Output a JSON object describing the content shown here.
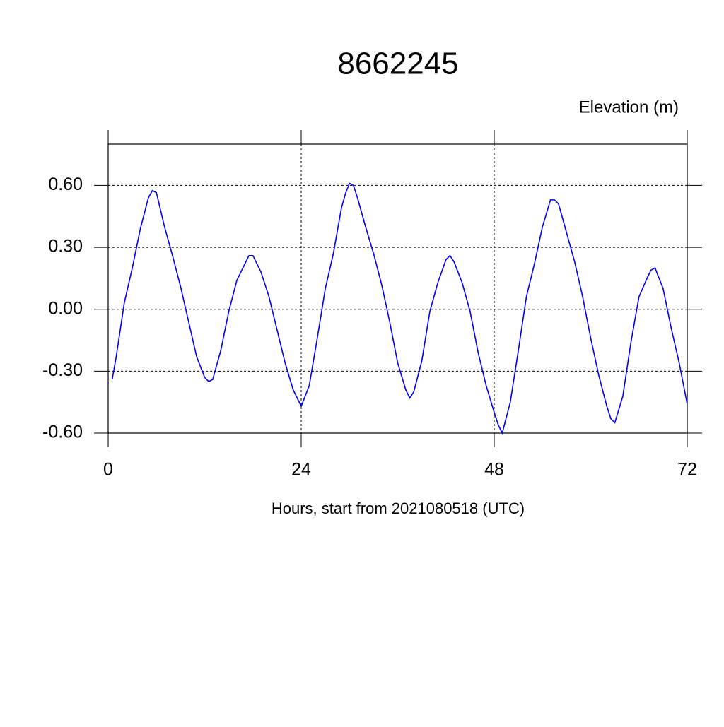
{
  "chart_data": {
    "type": "line",
    "title": "8662245",
    "y_axis_label": "Elevation (m)",
    "x_axis_label": "Hours, start from 2021080518 (UTC)",
    "xlim": [
      0,
      72
    ],
    "xticks": [
      0,
      24,
      48,
      72
    ],
    "ylim": [
      -0.6,
      0.8
    ],
    "yticks": [
      {
        "value": -0.6,
        "label": "-0.60"
      },
      {
        "value": -0.3,
        "label": "-0.30"
      },
      {
        "value": 0,
        "label": "0.00"
      },
      {
        "value": 0.3,
        "label": "0.30"
      },
      {
        "value": 0.6,
        "label": "0.60"
      }
    ],
    "grid": true,
    "x": [
      0.5,
      1,
      2,
      3,
      4,
      5,
      5.5,
      6,
      7,
      8,
      9,
      10,
      11,
      12,
      12.5,
      13,
      14,
      15,
      16,
      17,
      17.5,
      18,
      19,
      20,
      21,
      22,
      23,
      24,
      25,
      26,
      27,
      28,
      29,
      29.5,
      30,
      30.5,
      31,
      32,
      33,
      34,
      35,
      36,
      37,
      37.5,
      38,
      39,
      40,
      41,
      42,
      42.5,
      43,
      44,
      45,
      46,
      47,
      48,
      48.5,
      49,
      50,
      51,
      52,
      53,
      54,
      55,
      55.5,
      56,
      57,
      58,
      59,
      60,
      61,
      62,
      62.5,
      63,
      64,
      65,
      66,
      67,
      67.5,
      68,
      69,
      70,
      71,
      72
    ],
    "series": [
      {
        "color": "#0000ff",
        "values": [
          -0.34,
          -0.23,
          0.03,
          0.2,
          0.39,
          0.54,
          0.575,
          0.565,
          0.4,
          0.26,
          0.11,
          -0.06,
          -0.23,
          -0.33,
          -0.35,
          -0.34,
          -0.2,
          -0.01,
          0.14,
          0.22,
          0.26,
          0.26,
          0.18,
          0.06,
          -0.1,
          -0.26,
          -0.39,
          -0.47,
          -0.37,
          -0.14,
          0.1,
          0.27,
          0.49,
          0.56,
          0.61,
          0.6,
          0.54,
          0.4,
          0.27,
          0.12,
          -0.06,
          -0.26,
          -0.39,
          -0.43,
          -0.4,
          -0.25,
          -0.01,
          0.13,
          0.24,
          0.26,
          0.23,
          0.13,
          -0.01,
          -0.21,
          -0.37,
          -0.5,
          -0.56,
          -0.6,
          -0.45,
          -0.2,
          0.06,
          0.22,
          0.4,
          0.53,
          0.53,
          0.51,
          0.37,
          0.23,
          0.06,
          -0.14,
          -0.32,
          -0.47,
          -0.53,
          -0.55,
          -0.42,
          -0.16,
          0.06,
          0.15,
          0.19,
          0.2,
          0.1,
          -0.09,
          -0.26,
          -0.46
        ]
      }
    ]
  }
}
